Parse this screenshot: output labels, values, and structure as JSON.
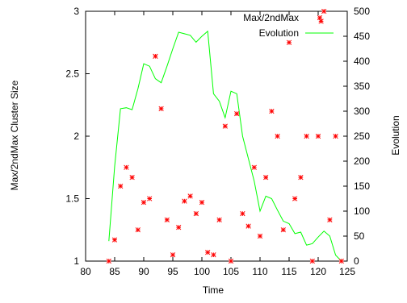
{
  "chart_data": {
    "type": "scatter",
    "xlabel": "Time",
    "ylabel_left": "Max/2ndMax Cluster Size",
    "ylabel_right": "Evolution",
    "xlim": [
      80,
      125
    ],
    "ylim_left": [
      1,
      3
    ],
    "ylim_right": [
      0,
      500
    ],
    "x_ticks": [
      80,
      85,
      90,
      95,
      100,
      105,
      110,
      115,
      120,
      125
    ],
    "y_ticks_left": [
      1,
      1.5,
      2,
      2.5,
      3
    ],
    "y_ticks_right": [
      0,
      50,
      100,
      150,
      200,
      250,
      300,
      350,
      400,
      450,
      500
    ],
    "grid": false,
    "legend_position": "top-right",
    "series": [
      {
        "name": "Max/2ndMax",
        "axis": "left",
        "style": "points",
        "color": "#ff0000",
        "x": [
          84,
          85,
          86,
          87,
          88,
          89,
          90,
          91,
          92,
          93,
          94,
          95,
          96,
          97,
          98,
          99,
          100,
          101,
          102,
          103,
          104,
          105,
          106,
          107,
          108,
          109,
          110,
          111,
          112,
          113,
          114,
          115,
          116,
          117,
          118,
          119,
          120,
          120.5,
          121,
          122,
          123,
          124
        ],
        "y": [
          1.0,
          1.17,
          1.6,
          1.75,
          1.67,
          1.25,
          1.47,
          1.5,
          2.64,
          2.22,
          1.33,
          1.05,
          1.27,
          1.48,
          1.52,
          1.38,
          1.47,
          1.07,
          1.05,
          1.33,
          2.08,
          1.0,
          2.18,
          1.38,
          1.28,
          1.75,
          1.2,
          1.67,
          2.2,
          2.0,
          1.25,
          2.75,
          1.5,
          1.67,
          2.0,
          1.0,
          2.0,
          2.92,
          3.0,
          1.33,
          2.0,
          1.0
        ]
      },
      {
        "name": "Evolution",
        "axis": "right",
        "style": "line",
        "color": "#00ff00",
        "x": [
          84,
          85,
          86,
          87,
          88,
          89,
          90,
          91,
          92,
          93,
          94,
          95,
          96,
          97,
          98,
          99,
          100,
          101,
          102,
          103,
          104,
          105,
          106,
          107,
          108,
          109,
          110,
          111,
          112,
          113,
          114,
          115,
          116,
          117,
          118,
          119,
          120,
          121,
          122,
          123,
          124
        ],
        "y": [
          40,
          190,
          305,
          307,
          303,
          345,
          395,
          390,
          365,
          357,
          390,
          425,
          458,
          455,
          452,
          438,
          450,
          460,
          335,
          320,
          287,
          340,
          335,
          250,
          205,
          160,
          100,
          130,
          125,
          102,
          80,
          75,
          55,
          58,
          32,
          35,
          48,
          60,
          50,
          12,
          0
        ]
      }
    ]
  }
}
